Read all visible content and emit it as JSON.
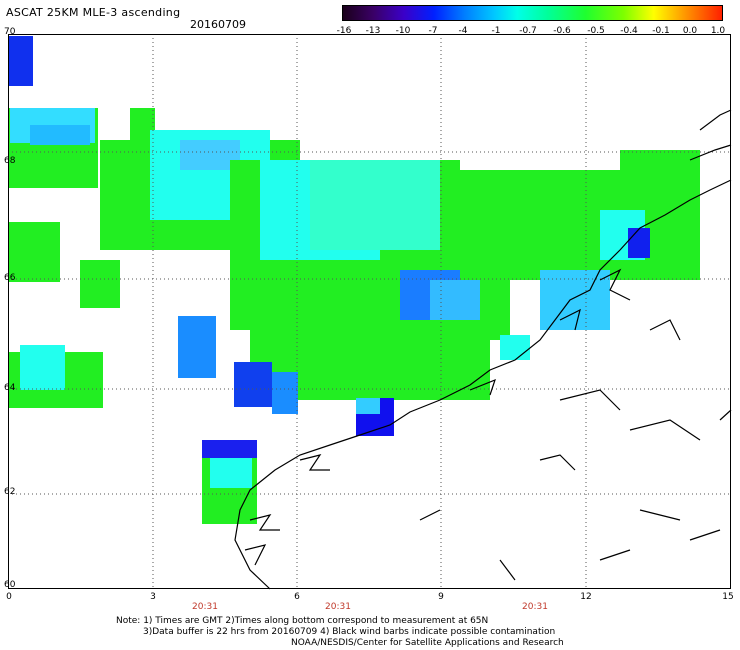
{
  "header": {
    "title": "ASCAT 25KM MLE-3 ascending",
    "date": "20160709"
  },
  "colorbar": {
    "ticks": [
      "-16",
      "-13",
      "-10",
      "-7",
      "-4",
      "-1",
      "-0.7",
      "-0.6",
      "-0.5",
      "-0.4",
      "-0.1",
      "0.0",
      "1.0"
    ]
  },
  "axes": {
    "y_ticks": [
      "70",
      "68",
      "66",
      "64",
      "62",
      "60"
    ],
    "x_ticks": [
      "0",
      "3",
      "6",
      "9",
      "12",
      "15"
    ],
    "time_labels": [
      "20:31",
      "20:31",
      "20:31"
    ]
  },
  "notes": {
    "line1": "Note: 1) Times are GMT 2)Times along bottom correspond to measurement at 65N",
    "line2": "3)Data buffer is 22 hrs from 20160709 4) Black wind barbs indicate possible contamination",
    "line3": "NOAA/NESDIS/Center for Satellite Applications and Research"
  },
  "colors": {
    "green": "#22ee22",
    "cyan": "#22ffee",
    "blue": "#1a7dff",
    "darkblue": "#1010ee",
    "lightblue": "#33bbff"
  }
}
